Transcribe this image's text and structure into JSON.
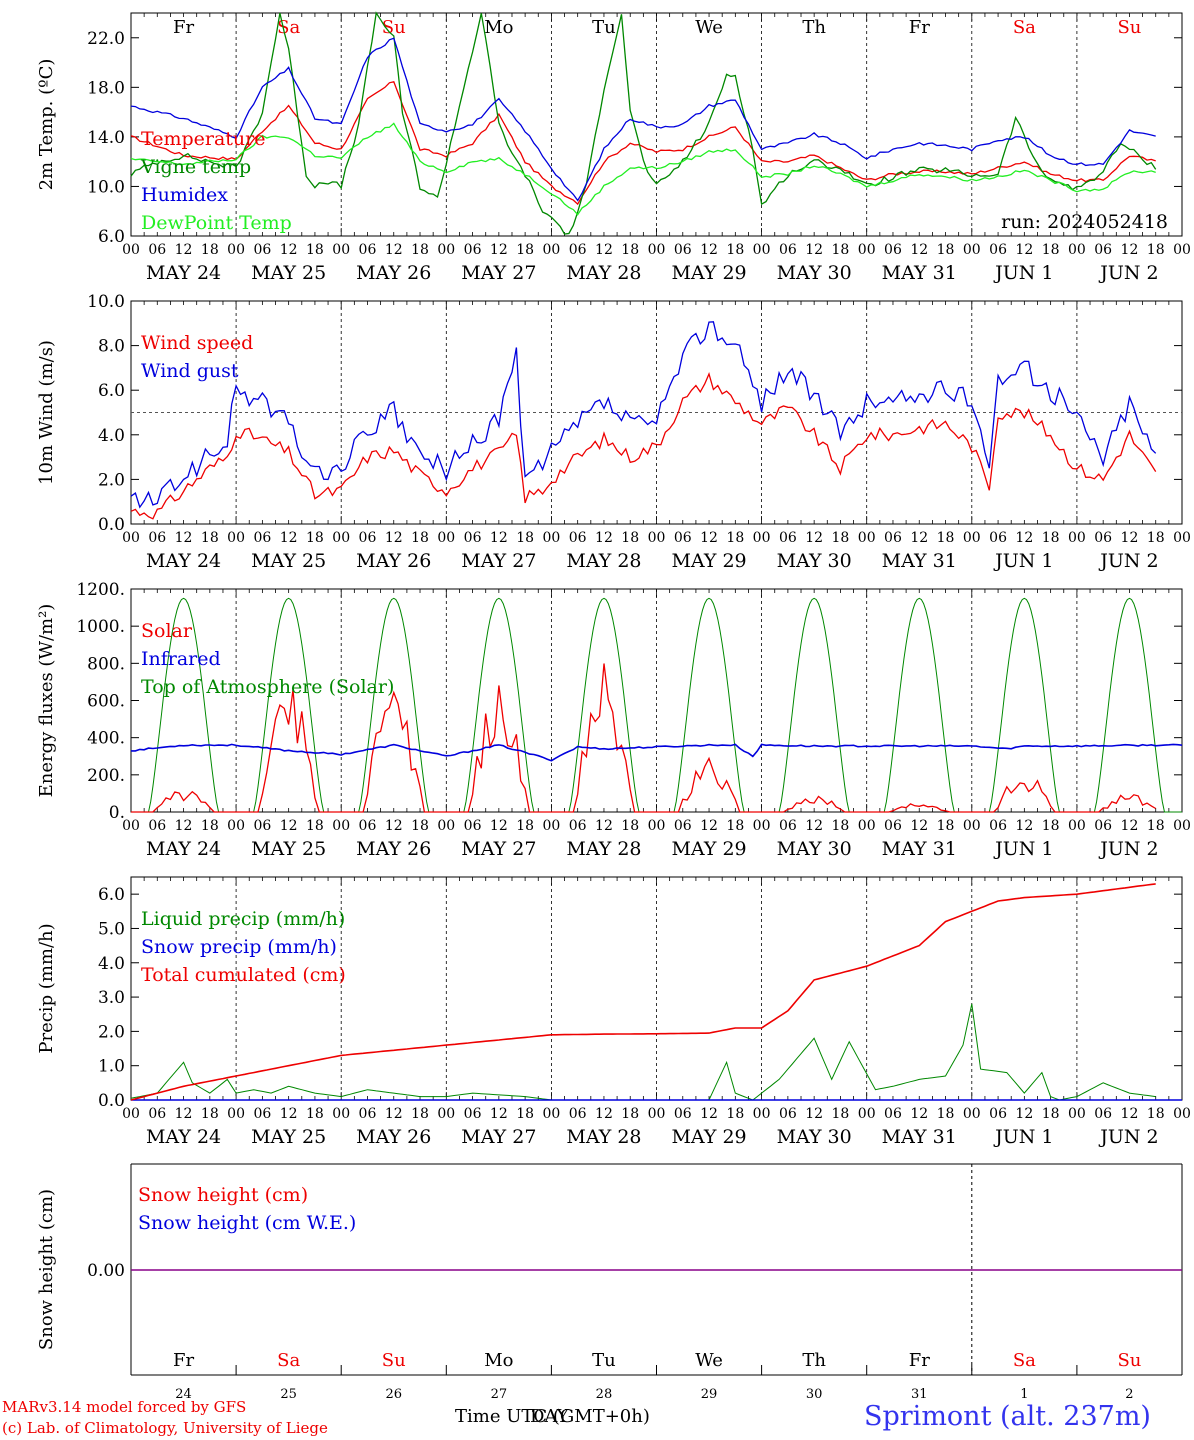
{
  "days": {
    "weekday": [
      "Fr",
      "Sa",
      "Su",
      "Mo",
      "Tu",
      "We",
      "Th",
      "Fr",
      "Sa",
      "Su"
    ],
    "weekend": [
      false,
      true,
      true,
      false,
      false,
      false,
      false,
      false,
      true,
      true
    ],
    "dates": [
      "MAY 24",
      "MAY 25",
      "MAY 26",
      "MAY 27",
      "MAY 28",
      "MAY 29",
      "MAY 30",
      "MAY 31",
      "JUN  1",
      "JUN  2"
    ],
    "day_numbers": [
      "24",
      "25",
      "26",
      "27",
      "28",
      "29",
      "30",
      "31",
      "1",
      "2"
    ],
    "hour_ticks": [
      "00",
      "06",
      "12",
      "18"
    ]
  },
  "colors": {
    "red": "#ee0000",
    "green": "#008800",
    "blue": "#0000dd",
    "lightgreen": "#22ee22",
    "purple": "#880088"
  },
  "run_label": "run: 2024052418",
  "footer": {
    "model": "MARv3.14 model forced by GFS",
    "lab": "(c) Lab. of Climatology, University of Liege",
    "time_label": "Time UTC (GMT+0h)",
    "day_label": "DAY",
    "station": "Sprimont (alt. 237m)"
  },
  "chart_data": [
    {
      "type": "line",
      "ylabel": "2m Temp. (ºC)",
      "ylim": [
        6,
        24
      ],
      "yticks": [
        "6.0",
        "10.0",
        "14.0",
        "18.0",
        "22.0"
      ],
      "x_unit": "hours since 2024-05-24 00 UTC",
      "series": [
        {
          "name": "Temperature",
          "color": "#ee0000",
          "x": [
            0,
            12,
            24,
            30,
            36,
            42,
            48,
            54,
            60,
            66,
            72,
            78,
            84,
            90,
            96,
            102,
            108,
            114,
            120,
            126,
            132,
            138,
            144,
            150,
            156,
            162,
            168,
            174,
            180,
            186,
            192,
            198,
            204,
            210,
            216,
            222,
            228,
            234
          ],
          "values": [
            14,
            12.5,
            12.2,
            14.5,
            16.5,
            13.5,
            13,
            17,
            18.5,
            13,
            12.5,
            13.5,
            15.8,
            12,
            10,
            8.7,
            12,
            13.5,
            12.8,
            13,
            14,
            14.8,
            12,
            12,
            12.5,
            11.5,
            10.5,
            11,
            11.2,
            11.2,
            11,
            11.5,
            12,
            11,
            10.5,
            10.5,
            12.5,
            12
          ]
        },
        {
          "name": "Vigne temp",
          "color": "#008800",
          "x": [
            0,
            6,
            12,
            18,
            24,
            30,
            34,
            36,
            40,
            42,
            44,
            48,
            52,
            56,
            60,
            62,
            66,
            70,
            72,
            76,
            80,
            84,
            88,
            90,
            94,
            96,
            100,
            104,
            108,
            112,
            114,
            118,
            120,
            126,
            132,
            136,
            138,
            142,
            144,
            150,
            156,
            162,
            168,
            174,
            180,
            186,
            192,
            198,
            202,
            204,
            208,
            212,
            216,
            222,
            226,
            234
          ],
          "values": [
            11,
            12,
            12.5,
            12,
            11.5,
            16,
            24,
            21,
            11,
            10,
            10.5,
            10,
            15,
            24,
            22,
            16,
            10,
            9,
            12,
            18,
            24,
            15,
            12,
            11,
            8,
            7.5,
            6,
            10,
            18,
            24,
            16,
            11,
            10,
            12,
            15,
            19,
            19,
            13,
            8.5,
            11,
            12,
            11.5,
            10,
            10.8,
            11.3,
            11.3,
            10.9,
            11,
            15.5,
            14,
            11,
            10.3,
            9.8,
            11.2,
            13.5,
            11.5
          ]
        },
        {
          "name": "Humidex",
          "color": "#0000dd",
          "x": [
            0,
            12,
            24,
            30,
            36,
            42,
            48,
            54,
            60,
            66,
            72,
            78,
            84,
            90,
            96,
            102,
            108,
            114,
            120,
            126,
            132,
            138,
            144,
            150,
            156,
            162,
            168,
            174,
            180,
            186,
            192,
            198,
            204,
            210,
            216,
            222,
            228,
            234
          ],
          "values": [
            16.5,
            15.5,
            14,
            18,
            19.5,
            15.5,
            15,
            20.5,
            22,
            15,
            14.5,
            15,
            17,
            14.5,
            11.5,
            8.8,
            13,
            15.5,
            14.8,
            15,
            16.5,
            17,
            13,
            13.5,
            14.2,
            13.5,
            12.3,
            13,
            13.5,
            13.3,
            13,
            13.8,
            14,
            12.5,
            11.8,
            11.8,
            14.5,
            14
          ]
        },
        {
          "name": "DewPoint Temp",
          "color": "#22ee22",
          "x": [
            0,
            12,
            24,
            30,
            36,
            42,
            48,
            54,
            60,
            66,
            72,
            78,
            84,
            90,
            96,
            102,
            108,
            114,
            120,
            126,
            132,
            138,
            144,
            150,
            156,
            162,
            168,
            174,
            180,
            186,
            192,
            198,
            204,
            210,
            216,
            222,
            228,
            234
          ],
          "values": [
            12.2,
            11.8,
            12.2,
            14,
            14,
            12.5,
            12.3,
            14,
            15,
            12,
            11.2,
            12,
            12.2,
            11,
            9.5,
            7.8,
            10,
            11.5,
            11.5,
            12,
            12.8,
            13,
            10.8,
            11,
            11.7,
            11,
            10,
            10.5,
            11,
            10.8,
            10.5,
            10.8,
            11.3,
            10.5,
            9.7,
            9.8,
            11.2,
            11.2
          ]
        }
      ]
    },
    {
      "type": "line",
      "ylabel": "10m Wind (m/s)",
      "ylim": [
        0,
        10
      ],
      "yticks": [
        "0.0",
        "2.0",
        "4.0",
        "6.0",
        "8.0",
        "10.0"
      ],
      "ref_line": 5,
      "series": [
        {
          "name": "Wind speed",
          "color": "#ee0000",
          "x": [
            0,
            6,
            12,
            18,
            22,
            24,
            30,
            36,
            42,
            48,
            54,
            60,
            66,
            72,
            78,
            84,
            88,
            90,
            94,
            96,
            102,
            108,
            114,
            120,
            126,
            132,
            138,
            144,
            150,
            156,
            162,
            168,
            174,
            180,
            186,
            192,
            196,
            198,
            204,
            210,
            216,
            222,
            228,
            234
          ],
          "values": [
            0.6,
            0.5,
            1.5,
            2.5,
            3,
            4.2,
            3.8,
            3.2,
            1.3,
            1.5,
            3,
            3.3,
            2.2,
            1.5,
            2.5,
            3.2,
            4,
            1.2,
            1.5,
            2,
            3,
            3.8,
            3,
            3.5,
            5.5,
            6.5,
            5.5,
            4.5,
            5.2,
            4,
            2.5,
            4,
            4,
            4.3,
            4.5,
            3.5,
            1.7,
            5,
            5,
            4,
            2.5,
            2,
            4,
            2.2
          ]
        },
        {
          "name": "Wind gust",
          "color": "#0000dd",
          "x": [
            0,
            6,
            12,
            18,
            22,
            24,
            30,
            36,
            42,
            48,
            54,
            60,
            66,
            72,
            78,
            84,
            88,
            90,
            94,
            96,
            102,
            108,
            114,
            120,
            126,
            132,
            138,
            144,
            150,
            156,
            162,
            168,
            174,
            180,
            186,
            192,
            196,
            198,
            204,
            210,
            216,
            222,
            228,
            234
          ],
          "values": [
            1.1,
            1,
            2.2,
            3,
            3.8,
            6,
            5.5,
            4.5,
            2.2,
            2.5,
            4.2,
            5,
            3,
            2.5,
            3.5,
            4.8,
            7.5,
            2,
            2.5,
            3.2,
            4.5,
            5.5,
            4.5,
            4.5,
            7.5,
            9,
            8,
            5.5,
            7,
            5.8,
            4,
            5.5,
            5.5,
            5.8,
            6,
            5.5,
            3,
            6.5,
            7,
            6,
            4.8,
            3,
            5.5,
            3
          ]
        }
      ]
    },
    {
      "type": "line",
      "ylabel": "Energy fluxes (W/m²)",
      "ylim": [
        0,
        1200
      ],
      "yticks": [
        "0.",
        "200.",
        "400.",
        "600.",
        "800.",
        "1000.",
        "1200."
      ],
      "series": [
        {
          "name": "Solar",
          "color": "#ee0000",
          "peaks": [
            130,
            720,
            720,
            740,
            800,
            320,
            100,
            50,
            220,
            100
          ]
        },
        {
          "name": "Infrared",
          "color": "#0000dd",
          "x": [
            0,
            12,
            24,
            36,
            48,
            60,
            72,
            84,
            96,
            102,
            108,
            120,
            132,
            138,
            142,
            144,
            156,
            168,
            180,
            192,
            200,
            204,
            216,
            234
          ],
          "values": [
            330,
            360,
            360,
            330,
            310,
            360,
            300,
            360,
            280,
            350,
            340,
            350,
            360,
            360,
            300,
            360,
            355,
            355,
            355,
            355,
            340,
            355,
            355,
            360
          ]
        },
        {
          "name": "Top of Atmosphere (Solar)",
          "color": "#008800",
          "peak": 1150
        }
      ]
    },
    {
      "type": "line",
      "ylabel": "Precip (mm/h)",
      "ylim": [
        0,
        6.5
      ],
      "yticks": [
        "0.0",
        "1.0",
        "2.0",
        "3.0",
        "4.0",
        "5.0",
        "6.0"
      ],
      "series": [
        {
          "name": "Liquid precip (mm/h)",
          "color": "#008800",
          "x": [
            0,
            6,
            10,
            12,
            14,
            18,
            22,
            24,
            28,
            32,
            36,
            42,
            48,
            54,
            60,
            66,
            72,
            78,
            84,
            90,
            96,
            108,
            132,
            136,
            138,
            142,
            148,
            152,
            156,
            160,
            164,
            170,
            174,
            180,
            186,
            190,
            192,
            194,
            200,
            204,
            208,
            210,
            212,
            216,
            222,
            228,
            234
          ],
          "values": [
            0.05,
            0.2,
            0.8,
            1.1,
            0.5,
            0.2,
            0.6,
            0.2,
            0.3,
            0.2,
            0.4,
            0.2,
            0.1,
            0.3,
            0.2,
            0.1,
            0.1,
            0.2,
            0.15,
            0.1,
            0,
            0,
            0,
            1.1,
            0.2,
            0,
            0.6,
            1.2,
            1.8,
            0.6,
            1.7,
            0.3,
            0.4,
            0.6,
            0.7,
            1.6,
            2.8,
            0.9,
            0.8,
            0.2,
            0.8,
            0.1,
            0,
            0.1,
            0.5,
            0.2,
            0.1
          ]
        },
        {
          "name": "Snow precip (mm/h)",
          "color": "#0000dd",
          "values_all": 0
        },
        {
          "name": "Total cumulated (cm)",
          "color": "#ee0000",
          "x": [
            0,
            12,
            24,
            36,
            48,
            60,
            72,
            84,
            96,
            108,
            120,
            132,
            138,
            144,
            150,
            156,
            162,
            168,
            174,
            180,
            186,
            192,
            198,
            204,
            216,
            228,
            234
          ],
          "values": [
            0,
            0.4,
            0.7,
            1.0,
            1.3,
            1.45,
            1.6,
            1.75,
            1.9,
            1.92,
            1.93,
            1.95,
            2.1,
            2.1,
            2.6,
            3.5,
            3.7,
            3.9,
            4.2,
            4.5,
            5.2,
            5.5,
            5.8,
            5.9,
            6.0,
            6.2,
            6.3
          ]
        }
      ]
    },
    {
      "type": "line",
      "ylabel": "Snow height (cm)",
      "yticks": [
        "0.00"
      ],
      "series": [
        {
          "name": "Snow height (cm)",
          "color": "#ee0000",
          "value": 0
        },
        {
          "name": "Snow height (cm W.E.)",
          "color": "#0000dd",
          "value": 0
        }
      ]
    }
  ]
}
